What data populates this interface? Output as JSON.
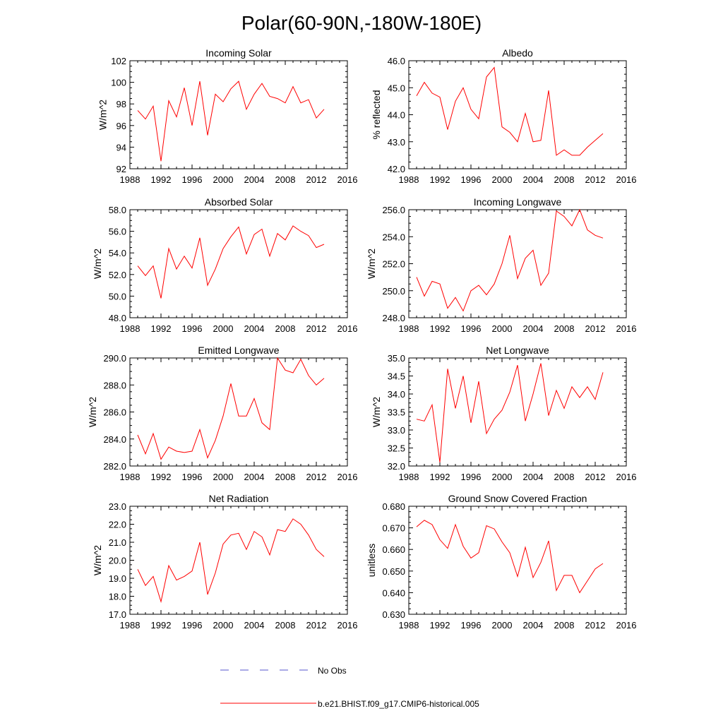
{
  "title": "Polar(60-90N,-180W-180E)",
  "colors": {
    "model": "#ff0000",
    "obs": "#5555cc",
    "axis": "#000000"
  },
  "legend": [
    {
      "label": "No Obs",
      "style": "dashed",
      "color": "#5555cc"
    },
    {
      "label": "b.e21.BHIST.f09_g17.CMIP6-historical.005",
      "style": "solid",
      "color": "#ff0000"
    }
  ],
  "chart_data": [
    {
      "type": "line",
      "title": "Incoming Solar",
      "xlabel": "",
      "ylabel": "W/m^2",
      "xlim": [
        1988,
        2016
      ],
      "ylim": [
        92,
        102
      ],
      "xticks": [
        1988,
        1992,
        1996,
        2000,
        2004,
        2008,
        2012,
        2016
      ],
      "xtick_labels": [
        "1988",
        "1992",
        "1996",
        "2000",
        "2004",
        "2008",
        "2012",
        "2016"
      ],
      "yticks": [
        92,
        94,
        96,
        98,
        100,
        102
      ],
      "ytick_labels": [
        "92",
        "94",
        "96",
        "98",
        "100",
        "102"
      ],
      "series": [
        {
          "name": "b.e21.BHIST.f09_g17.CMIP6-historical.005",
          "x": [
            1989,
            1990,
            1991,
            1992,
            1993,
            1994,
            1995,
            1996,
            1997,
            1998,
            1999,
            2000,
            2001,
            2002,
            2003,
            2004,
            2005,
            2006,
            2007,
            2008,
            2009,
            2010,
            2011,
            2012,
            2013
          ],
          "y": [
            97.4,
            96.6,
            97.8,
            92.7,
            98.3,
            96.8,
            99.5,
            96.0,
            100.1,
            95.1,
            98.9,
            98.2,
            99.4,
            100.1,
            97.5,
            98.9,
            99.9,
            98.7,
            98.5,
            98.1,
            99.6,
            98.1,
            98.4,
            96.7,
            97.5
          ]
        }
      ]
    },
    {
      "type": "line",
      "title": "Albedo",
      "xlabel": "",
      "ylabel": "% reflected",
      "xlim": [
        1988,
        2016
      ],
      "ylim": [
        42,
        46
      ],
      "xticks": [
        1988,
        1992,
        1996,
        2000,
        2004,
        2008,
        2012,
        2016
      ],
      "xtick_labels": [
        "1988",
        "1992",
        "1996",
        "2000",
        "2004",
        "2008",
        "2012",
        "2016"
      ],
      "yticks": [
        42,
        43,
        44,
        45,
        46
      ],
      "ytick_labels": [
        "42.0",
        "43.0",
        "44.0",
        "45.0",
        "46.0"
      ],
      "series": [
        {
          "name": "b.e21.BHIST.f09_g17.CMIP6-historical.005",
          "x": [
            1989,
            1990,
            1991,
            1992,
            1993,
            1994,
            1995,
            1996,
            1997,
            1998,
            1999,
            2000,
            2001,
            2002,
            2003,
            2004,
            2005,
            2006,
            2007,
            2008,
            2009,
            2010,
            2011,
            2012,
            2013
          ],
          "y": [
            44.7,
            45.2,
            44.8,
            44.65,
            43.45,
            44.5,
            45.0,
            44.2,
            43.85,
            45.4,
            45.75,
            43.55,
            43.35,
            43.0,
            44.05,
            43.0,
            43.05,
            44.9,
            42.5,
            42.7,
            42.5,
            42.5,
            42.8,
            43.05,
            43.3
          ]
        }
      ]
    },
    {
      "type": "line",
      "title": "Absorbed Solar",
      "xlabel": "",
      "ylabel": "W/m^2",
      "xlim": [
        1988,
        2016
      ],
      "ylim": [
        48,
        58
      ],
      "xticks": [
        1988,
        1992,
        1996,
        2000,
        2004,
        2008,
        2012,
        2016
      ],
      "xtick_labels": [
        "1988",
        "1992",
        "1996",
        "2000",
        "2004",
        "2008",
        "2012",
        "2016"
      ],
      "yticks": [
        48,
        50,
        52,
        54,
        56,
        58
      ],
      "ytick_labels": [
        "48.0",
        "50.0",
        "52.0",
        "54.0",
        "56.0",
        "58.0"
      ],
      "series": [
        {
          "name": "b.e21.BHIST.f09_g17.CMIP6-historical.005",
          "x": [
            1989,
            1990,
            1991,
            1992,
            1993,
            1994,
            1995,
            1996,
            1997,
            1998,
            1999,
            2000,
            2001,
            2002,
            2003,
            2004,
            2005,
            2006,
            2007,
            2008,
            2009,
            2010,
            2011,
            2012,
            2013
          ],
          "y": [
            52.8,
            51.9,
            52.8,
            49.8,
            54.4,
            52.5,
            53.7,
            52.6,
            55.4,
            51.0,
            52.5,
            54.4,
            55.5,
            56.4,
            53.9,
            55.7,
            56.2,
            53.7,
            55.8,
            55.2,
            56.5,
            56.0,
            55.6,
            54.5,
            54.8
          ]
        }
      ]
    },
    {
      "type": "line",
      "title": "Incoming Longwave",
      "xlabel": "",
      "ylabel": "W/m^2",
      "xlim": [
        1988,
        2016
      ],
      "ylim": [
        248,
        256
      ],
      "xticks": [
        1988,
        1992,
        1996,
        2000,
        2004,
        2008,
        2012,
        2016
      ],
      "xtick_labels": [
        "1988",
        "1992",
        "1996",
        "2000",
        "2004",
        "2008",
        "2012",
        "2016"
      ],
      "yticks": [
        248,
        250,
        252,
        254,
        256
      ],
      "ytick_labels": [
        "248.0",
        "250.0",
        "252.0",
        "254.0",
        "256.0"
      ],
      "series": [
        {
          "name": "b.e21.BHIST.f09_g17.CMIP6-historical.005",
          "x": [
            1989,
            1990,
            1991,
            1992,
            1993,
            1994,
            1995,
            1996,
            1997,
            1998,
            1999,
            2000,
            2001,
            2002,
            2003,
            2004,
            2005,
            2006,
            2007,
            2008,
            2009,
            2010,
            2011,
            2012,
            2013
          ],
          "y": [
            251.0,
            249.6,
            250.7,
            250.5,
            248.7,
            249.5,
            248.5,
            250.0,
            250.4,
            249.7,
            250.5,
            252.0,
            254.1,
            250.9,
            252.4,
            253.0,
            250.4,
            251.3,
            255.9,
            255.5,
            254.8,
            256.0,
            254.5,
            254.1,
            253.9
          ]
        }
      ]
    },
    {
      "type": "line",
      "title": "Emitted Longwave",
      "xlabel": "",
      "ylabel": "W/m^2",
      "xlim": [
        1988,
        2016
      ],
      "ylim": [
        282,
        290
      ],
      "xticks": [
        1988,
        1992,
        1996,
        2000,
        2004,
        2008,
        2012,
        2016
      ],
      "xtick_labels": [
        "1988",
        "1992",
        "1996",
        "2000",
        "2004",
        "2008",
        "2012",
        "2016"
      ],
      "yticks": [
        282,
        284,
        286,
        288,
        290
      ],
      "ytick_labels": [
        "282.0",
        "284.0",
        "286.0",
        "288.0",
        "290.0"
      ],
      "series": [
        {
          "name": "b.e21.BHIST.f09_g17.CMIP6-historical.005",
          "x": [
            1989,
            1990,
            1991,
            1992,
            1993,
            1994,
            1995,
            1996,
            1997,
            1998,
            1999,
            2000,
            2001,
            2002,
            2003,
            2004,
            2005,
            2006,
            2007,
            2008,
            2009,
            2010,
            2011,
            2012,
            2013
          ],
          "y": [
            284.3,
            282.9,
            284.4,
            282.5,
            283.4,
            283.1,
            283.0,
            283.1,
            284.7,
            282.6,
            283.9,
            285.7,
            288.1,
            285.7,
            285.7,
            287.0,
            285.2,
            284.7,
            290.0,
            289.1,
            288.9,
            289.9,
            288.7,
            288.0,
            288.5
          ]
        }
      ]
    },
    {
      "type": "line",
      "title": "Net Longwave",
      "xlabel": "",
      "ylabel": "W/m^2",
      "xlim": [
        1988,
        2016
      ],
      "ylim": [
        32,
        35
      ],
      "xticks": [
        1988,
        1992,
        1996,
        2000,
        2004,
        2008,
        2012,
        2016
      ],
      "xtick_labels": [
        "1988",
        "1992",
        "1996",
        "2000",
        "2004",
        "2008",
        "2012",
        "2016"
      ],
      "yticks": [
        32,
        32.5,
        33,
        33.5,
        34,
        34.5,
        35
      ],
      "ytick_labels": [
        "32.0",
        "32.5",
        "33.0",
        "33.5",
        "34.0",
        "34.5",
        "35.0"
      ],
      "series": [
        {
          "name": "b.e21.BHIST.f09_g17.CMIP6-historical.005",
          "x": [
            1989,
            1990,
            1991,
            1992,
            1993,
            1994,
            1995,
            1996,
            1997,
            1998,
            1999,
            2000,
            2001,
            2002,
            2003,
            2004,
            2005,
            2006,
            2007,
            2008,
            2009,
            2010,
            2011,
            2012,
            2013
          ],
          "y": [
            33.3,
            33.25,
            33.7,
            32.1,
            34.7,
            33.6,
            34.5,
            33.2,
            34.35,
            32.9,
            33.3,
            33.55,
            34.05,
            34.8,
            33.25,
            34.0,
            34.85,
            33.4,
            34.1,
            33.6,
            34.2,
            33.9,
            34.2,
            33.85,
            34.6
          ]
        }
      ]
    },
    {
      "type": "line",
      "title": "Net Radiation",
      "xlabel": "",
      "ylabel": "W/m^2",
      "xlim": [
        1988,
        2016
      ],
      "ylim": [
        17,
        23
      ],
      "xticks": [
        1988,
        1992,
        1996,
        2000,
        2004,
        2008,
        2012,
        2016
      ],
      "xtick_labels": [
        "1988",
        "1992",
        "1996",
        "2000",
        "2004",
        "2008",
        "2012",
        "2016"
      ],
      "yticks": [
        17,
        18,
        19,
        20,
        21,
        22,
        23
      ],
      "ytick_labels": [
        "17.0",
        "18.0",
        "19.0",
        "20.0",
        "21.0",
        "22.0",
        "23.0"
      ],
      "series": [
        {
          "name": "b.e21.BHIST.f09_g17.CMIP6-historical.005",
          "x": [
            1989,
            1990,
            1991,
            1992,
            1993,
            1994,
            1995,
            1996,
            1997,
            1998,
            1999,
            2000,
            2001,
            2002,
            2003,
            2004,
            2005,
            2006,
            2007,
            2008,
            2009,
            2010,
            2011,
            2012,
            2013
          ],
          "y": [
            19.5,
            18.6,
            19.1,
            17.7,
            19.7,
            18.9,
            19.1,
            19.4,
            21.0,
            18.1,
            19.3,
            20.9,
            21.4,
            21.5,
            20.6,
            21.6,
            21.3,
            20.3,
            21.7,
            21.6,
            22.3,
            22.0,
            21.4,
            20.6,
            20.2
          ]
        }
      ]
    },
    {
      "type": "line",
      "title": "Ground Snow Covered Fraction",
      "xlabel": "",
      "ylabel": "unitless",
      "xlim": [
        1988,
        2016
      ],
      "ylim": [
        0.63,
        0.68
      ],
      "xticks": [
        1988,
        1992,
        1996,
        2000,
        2004,
        2008,
        2012,
        2016
      ],
      "xtick_labels": [
        "1988",
        "1992",
        "1996",
        "2000",
        "2004",
        "2008",
        "2012",
        "2016"
      ],
      "yticks": [
        0.63,
        0.64,
        0.65,
        0.66,
        0.67,
        0.68
      ],
      "ytick_labels": [
        "0.630",
        "0.640",
        "0.650",
        "0.660",
        "0.670",
        "0.680"
      ],
      "series": [
        {
          "name": "b.e21.BHIST.f09_g17.CMIP6-historical.005",
          "x": [
            1989,
            1990,
            1991,
            1992,
            1993,
            1994,
            1995,
            1996,
            1997,
            1998,
            1999,
            2000,
            2001,
            2002,
            2003,
            2004,
            2005,
            2006,
            2007,
            2008,
            2009,
            2010,
            2011,
            2012,
            2013
          ],
          "y": [
            0.6705,
            0.6735,
            0.6715,
            0.6645,
            0.6605,
            0.6715,
            0.6615,
            0.656,
            0.6585,
            0.671,
            0.6695,
            0.6635,
            0.6585,
            0.6475,
            0.661,
            0.647,
            0.654,
            0.664,
            0.641,
            0.648,
            0.648,
            0.64,
            0.6455,
            0.651,
            0.6535
          ]
        }
      ]
    }
  ]
}
